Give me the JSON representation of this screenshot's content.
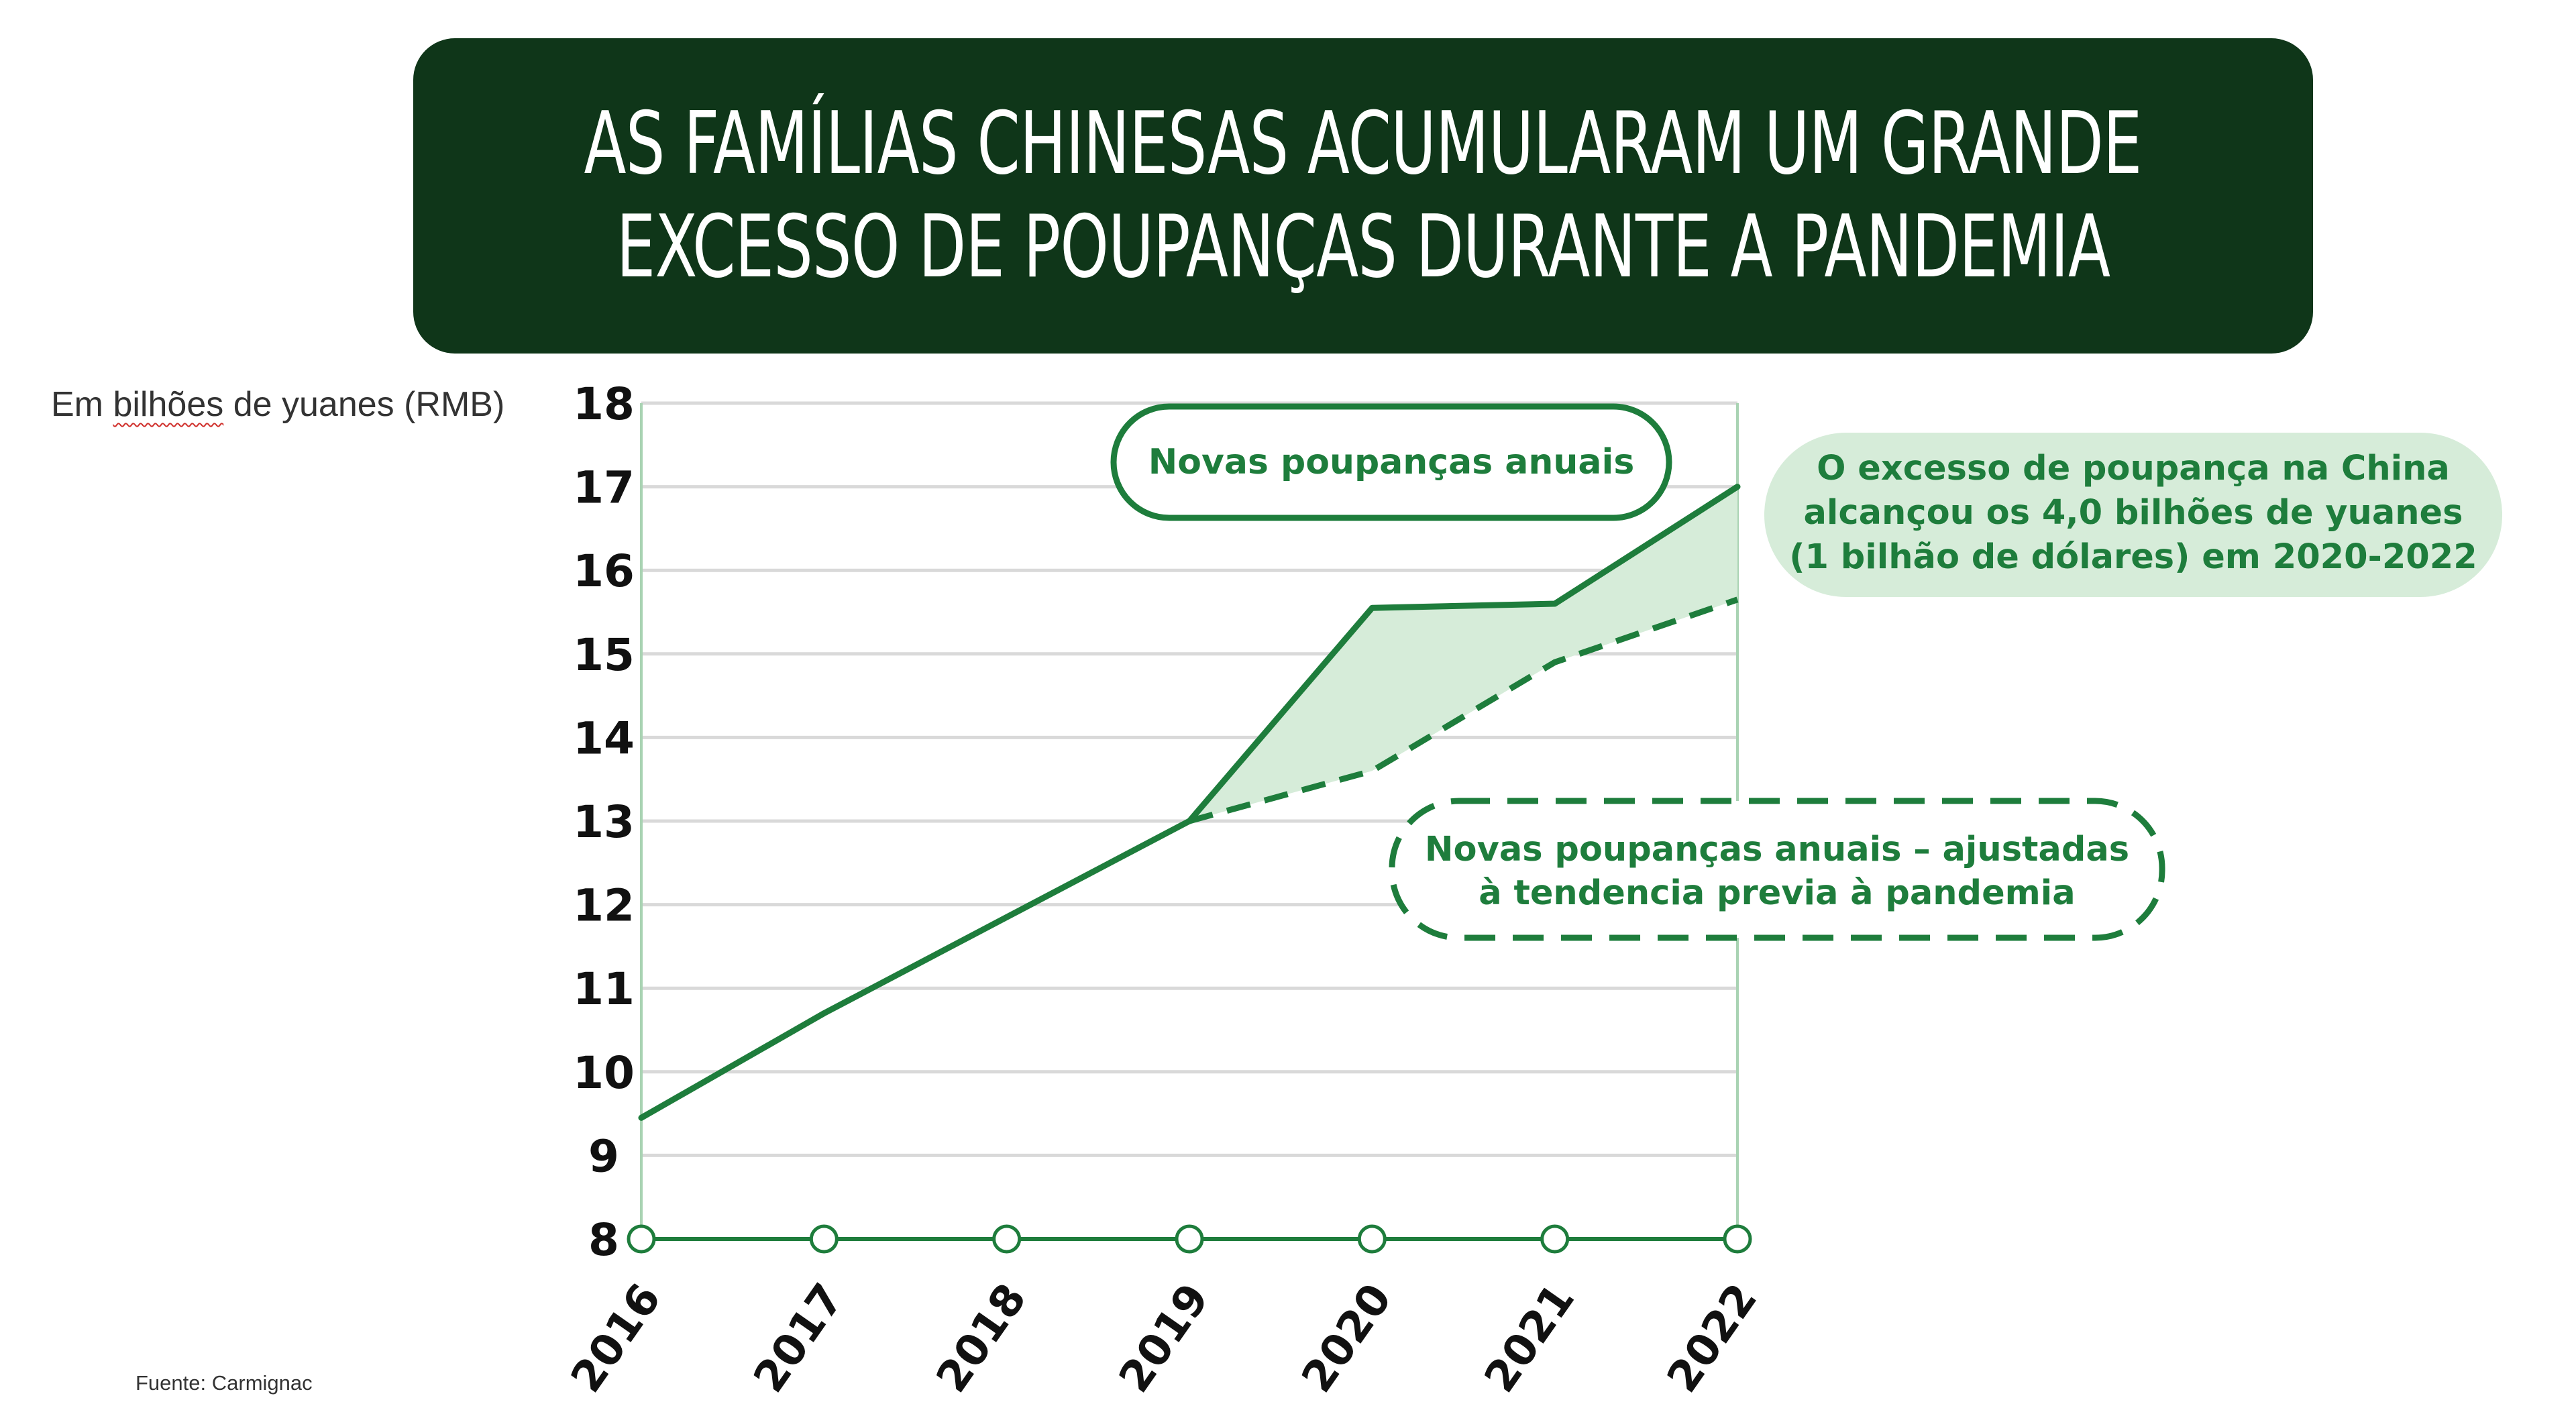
{
  "title": {
    "line1": "AS FAMÍLIAS CHINESAS ACUMULARAM UM GRANDE",
    "line2": "EXCESSO DE POUPANÇAS DURANTE A PANDEMIA"
  },
  "unit_label": {
    "pre": "Em ",
    "word": "bilhões",
    "post": " de yuanes (RMB)"
  },
  "source": "Fuente: Carmignac",
  "colors": {
    "banner": "#0f3619",
    "accent": "#1e7d3c",
    "fill": "#d6ecd9",
    "grid": "#d9d9d9"
  },
  "chart_data": {
    "type": "line",
    "categories": [
      "2016",
      "2017",
      "2018",
      "2019",
      "2020",
      "2021",
      "2022"
    ],
    "ylim": [
      8,
      18
    ],
    "yticks": [
      8,
      9,
      10,
      11,
      12,
      13,
      14,
      15,
      16,
      17,
      18
    ],
    "grid": true,
    "series": [
      {
        "name": "Novas poupanças anuais",
        "style": "solid",
        "values": [
          9.45,
          10.7,
          11.85,
          13.0,
          15.55,
          15.6,
          17.0
        ]
      },
      {
        "name": "Novas poupanças anuais – ajustadas à tendencia previa à pandemia",
        "style": "dashed",
        "values": [
          null,
          null,
          null,
          13.0,
          13.6,
          14.9,
          15.65
        ]
      }
    ],
    "shaded_area": "between series from 2019 to 2022",
    "annotations": {
      "solid_label": "Novas poupanças anuais",
      "dashed_label_line1": "Novas poupanças anuais – ajustadas",
      "dashed_label_line2": "à tendencia previa à pandemia",
      "excess_line1": "O excesso de poupança na China",
      "excess_line2": "alcançou os 4,0 bilhões de yuanes",
      "excess_line3": "(1 bilhão de dólares) em 2020-2022"
    }
  }
}
